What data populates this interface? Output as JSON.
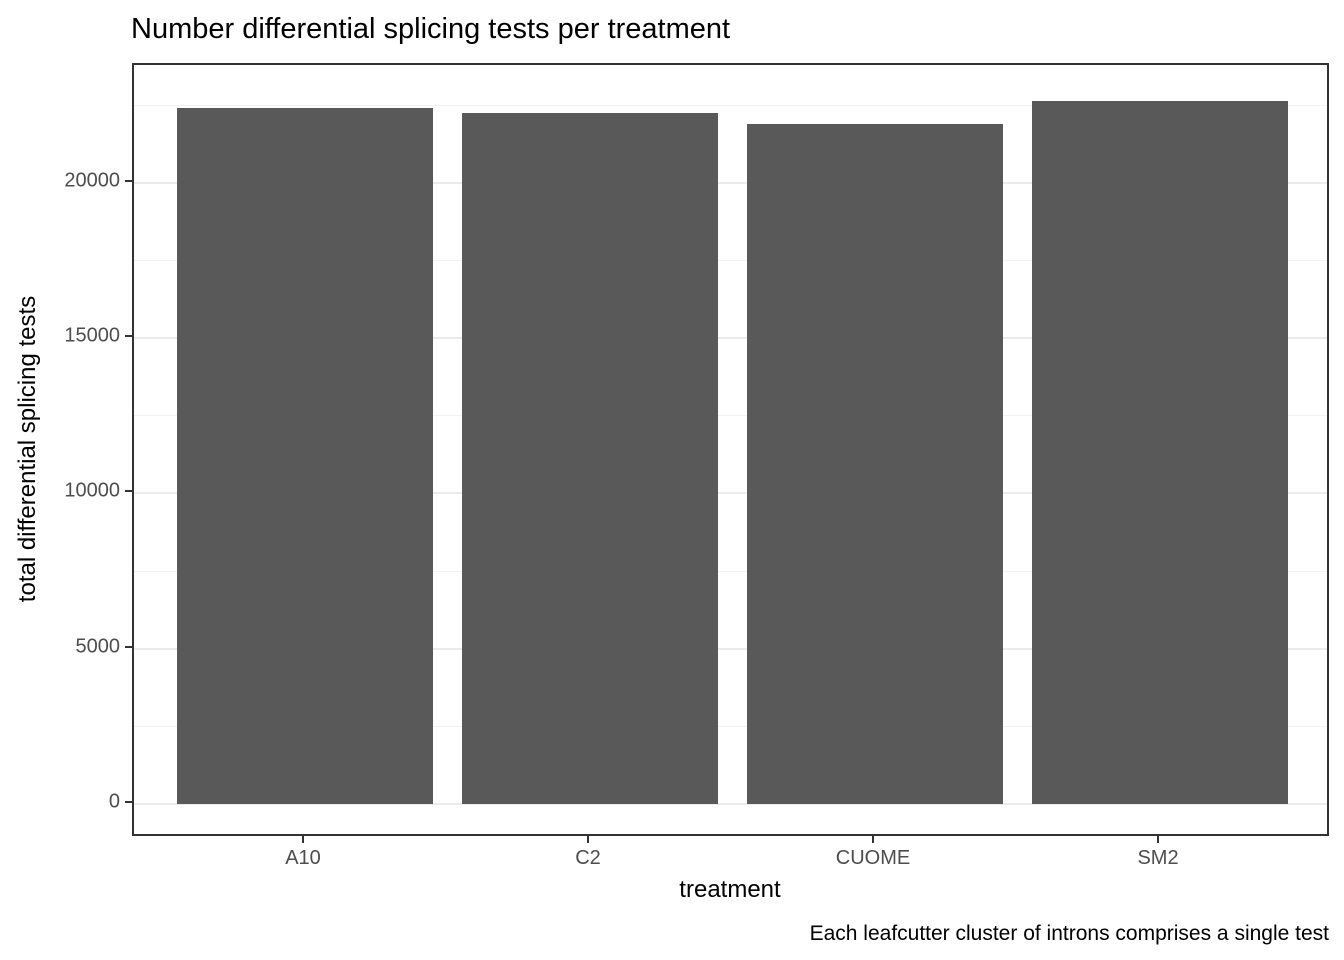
{
  "chart_data": {
    "type": "bar",
    "title": "Number differential splicing tests per treatment",
    "xlabel": "treatment",
    "ylabel": "total differential splicing tests",
    "caption": "Each leafcutter cluster of introns comprises a single test",
    "categories": [
      "A10",
      "C2",
      "CUOME",
      "SM2"
    ],
    "values": [
      22430,
      22250,
      21890,
      22640
    ],
    "yticks": [
      0,
      5000,
      10000,
      15000,
      20000
    ],
    "yticks_minor": [
      2500,
      7500,
      12500,
      17500,
      22500
    ],
    "ylim": [
      0,
      22640
    ],
    "y_range_expanded": [
      -1100,
      23800
    ],
    "x_range": [
      0.4,
      4.6
    ],
    "bar_width": 0.9,
    "grid": "on",
    "legend": "none",
    "colors": {
      "bar_fill": "#595959",
      "axis_text": "#4D4D4D",
      "title_text": "#000000",
      "panel_border": "#333333",
      "grid_major": "#EBEBEB",
      "grid_minor": "#F2F2F2",
      "tick_mark": "#333333",
      "background": "#FFFFFF"
    }
  }
}
